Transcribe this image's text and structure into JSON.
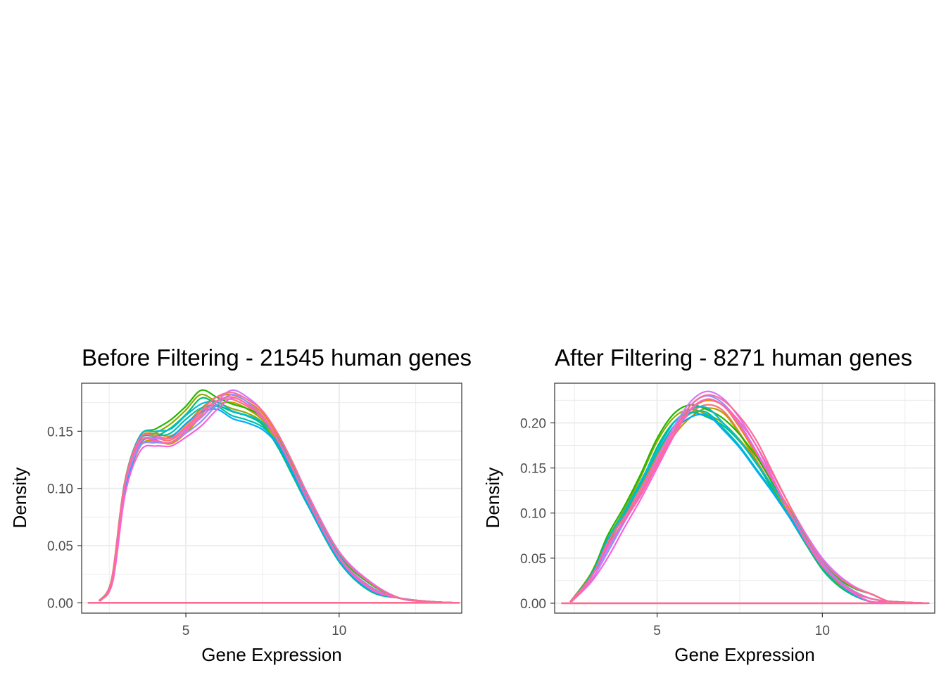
{
  "chart_data": [
    {
      "type": "line",
      "title": "Before Filtering - 21545 human genes",
      "xlabel": "Gene Expression",
      "ylabel": "Density",
      "xlim": [
        1.6,
        14.0
      ],
      "ylim": [
        -0.009,
        0.192
      ],
      "xticks": [
        5,
        10
      ],
      "xtick_labels": [
        "5",
        "10"
      ],
      "yticks": [
        0.0,
        0.05,
        0.1,
        0.15
      ],
      "ytick_labels": [
        "0.00",
        "0.05",
        "0.10",
        "0.15"
      ],
      "grid": true,
      "legend": "none",
      "series_colors": [
        "#F8766D",
        "#E18A00",
        "#BE9C00",
        "#8CAB00",
        "#24B700",
        "#00BE70",
        "#00C1AB",
        "#00BBDA",
        "#00ACFC",
        "#8B93FF",
        "#D575FE",
        "#F962DD",
        "#FF65AC",
        "#FF6C91"
      ],
      "series": [
        {
          "x": [
            2.2,
            2.6,
            3.0,
            3.5,
            4.0,
            4.5,
            5.0,
            5.5,
            6.0,
            6.5,
            7.0,
            7.5,
            8.0,
            8.5,
            9.0,
            10.0,
            11.0,
            12.0,
            13.0,
            13.9
          ],
          "values": [
            0.002,
            0.02,
            0.1,
            0.14,
            0.144,
            0.142,
            0.152,
            0.166,
            0.176,
            0.178,
            0.172,
            0.162,
            0.142,
            0.116,
            0.088,
            0.04,
            0.014,
            0.004,
            0.001,
            0.0
          ]
        },
        {
          "x": [
            2.2,
            2.6,
            3.0,
            3.5,
            4.0,
            4.5,
            5.0,
            5.5,
            6.0,
            6.5,
            7.0,
            7.5,
            8.0,
            8.5,
            9.0,
            10.0,
            11.0,
            12.0,
            13.0,
            13.9
          ],
          "values": [
            0.002,
            0.021,
            0.101,
            0.142,
            0.148,
            0.156,
            0.168,
            0.182,
            0.176,
            0.17,
            0.166,
            0.158,
            0.138,
            0.112,
            0.086,
            0.038,
            0.013,
            0.004,
            0.001,
            0.0
          ]
        },
        {
          "x": [
            2.2,
            2.6,
            3.0,
            3.5,
            4.0,
            4.5,
            5.0,
            5.5,
            6.0,
            6.5,
            7.0,
            7.5,
            8.0,
            8.5,
            9.0,
            10.0,
            11.0,
            12.0,
            13.0,
            13.9
          ],
          "values": [
            0.002,
            0.02,
            0.1,
            0.142,
            0.146,
            0.148,
            0.16,
            0.17,
            0.172,
            0.164,
            0.16,
            0.154,
            0.14,
            0.114,
            0.087,
            0.039,
            0.014,
            0.004,
            0.001,
            0.0
          ]
        },
        {
          "x": [
            2.2,
            2.6,
            3.0,
            3.5,
            4.0,
            4.5,
            5.0,
            5.5,
            6.0,
            6.5,
            7.0,
            7.5,
            8.0,
            8.5,
            9.0,
            10.0,
            11.0,
            12.0,
            13.0,
            13.9
          ],
          "values": [
            0.002,
            0.019,
            0.098,
            0.136,
            0.14,
            0.14,
            0.148,
            0.158,
            0.172,
            0.182,
            0.176,
            0.164,
            0.144,
            0.118,
            0.09,
            0.041,
            0.015,
            0.004,
            0.001,
            0.0
          ]
        },
        {
          "x": [
            2.2,
            2.6,
            3.0,
            3.5,
            4.0,
            4.5,
            5.0,
            5.5,
            6.0,
            6.5,
            7.0,
            7.5,
            8.0,
            8.5,
            9.0,
            10.0,
            11.0,
            12.0,
            13.0,
            13.9
          ],
          "values": [
            0.002,
            0.02,
            0.1,
            0.14,
            0.142,
            0.14,
            0.15,
            0.164,
            0.176,
            0.18,
            0.174,
            0.164,
            0.144,
            0.118,
            0.089,
            0.04,
            0.014,
            0.004,
            0.001,
            0.0
          ]
        },
        {
          "x": [
            2.2,
            2.6,
            3.0,
            3.5,
            4.0,
            4.5,
            5.0,
            5.5,
            6.0,
            6.5,
            7.0,
            7.5,
            8.0,
            8.5,
            9.0,
            10.0,
            11.0,
            12.0,
            13.0,
            13.9
          ],
          "values": [
            0.002,
            0.02,
            0.1,
            0.142,
            0.144,
            0.138,
            0.146,
            0.16,
            0.168,
            0.172,
            0.17,
            0.162,
            0.146,
            0.12,
            0.09,
            0.04,
            0.014,
            0.004,
            0.001,
            0.0
          ]
        }
      ],
      "baseline": {
        "x": [
          1.8,
          13.9
        ],
        "values": [
          0.0,
          0.0
        ]
      }
    },
    {
      "type": "line",
      "title": "After Filtering - 8271 human genes",
      "xlabel": "Gene Expression",
      "ylabel": "Density",
      "xlim": [
        1.9,
        13.4
      ],
      "ylim": [
        -0.011,
        0.244
      ],
      "xticks": [
        5,
        10
      ],
      "xtick_labels": [
        "5",
        "10"
      ],
      "yticks": [
        0.0,
        0.05,
        0.1,
        0.15,
        0.2
      ],
      "ytick_labels": [
        "0.00",
        "0.05",
        "0.10",
        "0.15",
        "0.20"
      ],
      "grid": true,
      "legend": "none",
      "series_colors": [
        "#F8766D",
        "#E18A00",
        "#BE9C00",
        "#8CAB00",
        "#24B700",
        "#00BE70",
        "#00C1AB",
        "#00BBDA",
        "#00ACFC",
        "#8B93FF",
        "#D575FE",
        "#F962DD",
        "#FF65AC",
        "#FF6C91"
      ],
      "series": [
        {
          "x": [
            2.4,
            3.0,
            3.5,
            4.0,
            4.5,
            5.0,
            5.5,
            6.0,
            6.5,
            7.0,
            7.5,
            8.0,
            8.5,
            9.0,
            9.5,
            10.0,
            10.5,
            11.0,
            11.5,
            12.0,
            12.5,
            13.2
          ],
          "values": [
            0.002,
            0.03,
            0.065,
            0.095,
            0.125,
            0.16,
            0.19,
            0.21,
            0.22,
            0.214,
            0.19,
            0.16,
            0.13,
            0.1,
            0.07,
            0.042,
            0.024,
            0.012,
            0.005,
            0.002,
            0.001,
            0.0
          ]
        },
        {
          "x": [
            2.4,
            3.0,
            3.5,
            4.0,
            4.5,
            5.0,
            5.5,
            6.0,
            6.5,
            7.0,
            7.5,
            8.0,
            8.5,
            9.0,
            9.5,
            10.0,
            10.5,
            11.0,
            11.5,
            12.0,
            12.5,
            13.2
          ],
          "values": [
            0.002,
            0.032,
            0.07,
            0.102,
            0.138,
            0.178,
            0.205,
            0.215,
            0.21,
            0.2,
            0.182,
            0.158,
            0.128,
            0.098,
            0.068,
            0.04,
            0.022,
            0.011,
            0.005,
            0.002,
            0.001,
            0.0
          ]
        },
        {
          "x": [
            2.4,
            3.0,
            3.5,
            4.0,
            4.5,
            5.0,
            5.5,
            6.0,
            6.5,
            7.0,
            7.5,
            8.0,
            8.5,
            9.0,
            9.5,
            10.0,
            10.5,
            11.0,
            11.5,
            12.0,
            12.5,
            13.2
          ],
          "values": [
            0.002,
            0.03,
            0.066,
            0.096,
            0.13,
            0.165,
            0.195,
            0.21,
            0.212,
            0.195,
            0.175,
            0.15,
            0.125,
            0.098,
            0.07,
            0.043,
            0.025,
            0.012,
            0.005,
            0.002,
            0.001,
            0.0
          ]
        },
        {
          "x": [
            2.4,
            3.0,
            3.5,
            4.0,
            4.5,
            5.0,
            5.5,
            6.0,
            6.5,
            7.0,
            7.5,
            8.0,
            8.5,
            9.0,
            9.5,
            10.0,
            10.5,
            11.0,
            11.5,
            12.0,
            12.5,
            13.2
          ],
          "values": [
            0.002,
            0.024,
            0.055,
            0.088,
            0.12,
            0.155,
            0.19,
            0.218,
            0.23,
            0.222,
            0.2,
            0.17,
            0.138,
            0.104,
            0.072,
            0.045,
            0.026,
            0.013,
            0.005,
            0.002,
            0.001,
            0.0
          ]
        },
        {
          "x": [
            2.4,
            3.0,
            3.5,
            4.0,
            4.5,
            5.0,
            5.5,
            6.0,
            6.5,
            7.0,
            7.5,
            8.0,
            8.5,
            9.0,
            9.5,
            10.0,
            10.5,
            11.0,
            11.5,
            12.0,
            12.5,
            13.2
          ],
          "values": [
            0.002,
            0.028,
            0.062,
            0.09,
            0.118,
            0.152,
            0.186,
            0.214,
            0.226,
            0.22,
            0.202,
            0.176,
            0.14,
            0.104,
            0.07,
            0.042,
            0.024,
            0.012,
            0.005,
            0.002,
            0.001,
            0.0
          ]
        },
        {
          "x": [
            2.4,
            3.0,
            3.5,
            4.0,
            4.5,
            5.0,
            5.5,
            6.0,
            6.5,
            7.0,
            7.5,
            8.0,
            8.5,
            9.0,
            9.5,
            10.0,
            10.5,
            11.0,
            11.5,
            12.0,
            12.5,
            13.2
          ],
          "values": [
            0.002,
            0.028,
            0.06,
            0.088,
            0.115,
            0.148,
            0.182,
            0.208,
            0.218,
            0.215,
            0.205,
            0.184,
            0.145,
            0.108,
            0.074,
            0.044,
            0.025,
            0.012,
            0.005,
            0.002,
            0.001,
            0.0
          ]
        }
      ],
      "baseline": {
        "x": [
          2.1,
          13.2
        ],
        "values": [
          0.0,
          0.0
        ]
      }
    }
  ]
}
